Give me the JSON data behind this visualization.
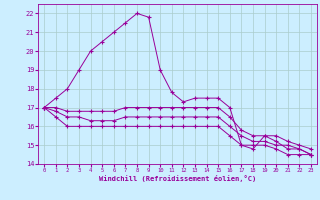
{
  "xlabel": "Windchill (Refroidissement éolien,°C)",
  "x_values": [
    0,
    1,
    2,
    3,
    4,
    5,
    6,
    7,
    8,
    9,
    10,
    11,
    12,
    13,
    14,
    15,
    16,
    17,
    18,
    19,
    20,
    21,
    22,
    23
  ],
  "line1": [
    17.0,
    17.5,
    18.0,
    19.0,
    20.0,
    20.5,
    21.0,
    21.5,
    22.0,
    21.8,
    19.0,
    17.8,
    17.3,
    17.5,
    17.5,
    17.5,
    17.0,
    15.0,
    14.8,
    15.5,
    15.2,
    14.8,
    14.8,
    14.5
  ],
  "line2": [
    17.0,
    17.0,
    16.8,
    16.8,
    16.8,
    16.8,
    16.8,
    17.0,
    17.0,
    17.0,
    17.0,
    17.0,
    17.0,
    17.0,
    17.0,
    17.0,
    16.5,
    15.8,
    15.5,
    15.5,
    15.5,
    15.2,
    15.0,
    14.8
  ],
  "line3": [
    17.0,
    16.8,
    16.5,
    16.5,
    16.3,
    16.3,
    16.3,
    16.5,
    16.5,
    16.5,
    16.5,
    16.5,
    16.5,
    16.5,
    16.5,
    16.5,
    16.0,
    15.5,
    15.2,
    15.2,
    15.0,
    15.0,
    14.8,
    14.5
  ],
  "line4": [
    17.0,
    16.5,
    16.0,
    16.0,
    16.0,
    16.0,
    16.0,
    16.0,
    16.0,
    16.0,
    16.0,
    16.0,
    16.0,
    16.0,
    16.0,
    16.0,
    15.5,
    15.0,
    15.0,
    15.0,
    14.8,
    14.5,
    14.5,
    14.5
  ],
  "line_color": "#990099",
  "bg_color": "#cceeff",
  "grid_color": "#aacccc",
  "ylim": [
    14,
    22.5
  ],
  "xlim": [
    -0.5,
    23.5
  ],
  "yticks": [
    14,
    15,
    16,
    17,
    18,
    19,
    20,
    21,
    22
  ],
  "xticks": [
    0,
    1,
    2,
    3,
    4,
    5,
    6,
    7,
    8,
    9,
    10,
    11,
    12,
    13,
    14,
    15,
    16,
    17,
    18,
    19,
    20,
    21,
    22,
    23
  ]
}
